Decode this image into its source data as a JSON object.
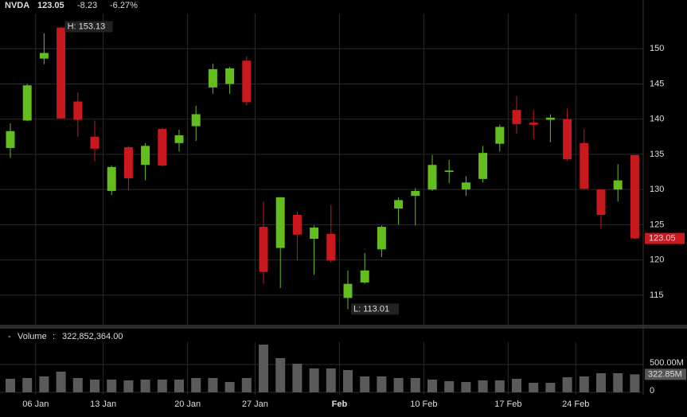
{
  "chart_data": {
    "type": "candlestick",
    "symbol": "NVDA",
    "last": "123.05",
    "change": "-8.23",
    "change_pct": "-6.27%",
    "high_label": "H: 153.13",
    "low_label": "L: 113.01",
    "last_label": "123.05",
    "volume_title": "Volume",
    "volume_text": "322,852,364.00",
    "categories": [
      null,
      null,
      "06 Jan",
      null,
      null,
      null,
      "13 Jan",
      null,
      null,
      null,
      null,
      "20 Jan",
      null,
      null,
      null,
      "27 Jan",
      null,
      null,
      null,
      null,
      "Feb",
      null,
      null,
      null,
      null,
      "10 Feb",
      null,
      null,
      null,
      null,
      "17 Feb",
      null,
      null,
      null,
      "24 Feb",
      null,
      null,
      null
    ],
    "open": [
      135.9,
      139.8,
      148.6,
      153.0,
      142.5,
      137.5,
      129.8,
      136.0,
      133.5,
      138.6,
      136.6,
      139.0,
      144.5,
      145.0,
      148.3,
      124.7,
      121.7,
      126.4,
      123.0,
      123.7,
      114.6,
      116.8,
      121.5,
      127.3,
      129.1,
      130.0,
      132.5,
      130.0,
      131.5,
      136.5,
      141.3,
      139.5,
      139.9,
      140.0,
      136.6,
      130.0,
      130.0,
      134.9
    ],
    "high": [
      139.4,
      145.0,
      152.2,
      153.13,
      143.8,
      139.8,
      133.4,
      136.2,
      136.6,
      138.8,
      138.5,
      141.9,
      147.9,
      147.4,
      148.9,
      128.3,
      128.9,
      126.9,
      124.9,
      127.8,
      118.5,
      121.0,
      124.9,
      128.9,
      130.2,
      134.9,
      134.2,
      131.9,
      136.2,
      139.2,
      143.3,
      141.3,
      140.7,
      141.5,
      138.6,
      130.0,
      133.6,
      134.9
    ],
    "low": [
      134.5,
      139.7,
      147.8,
      140.0,
      137.5,
      134.0,
      129.2,
      129.9,
      131.3,
      133.3,
      135.4,
      136.9,
      143.6,
      143.6,
      141.9,
      116.6,
      116.0,
      119.9,
      117.9,
      119.6,
      113.01,
      116.6,
      120.4,
      125.0,
      124.9,
      129.8,
      130.9,
      129.1,
      131.0,
      135.4,
      137.9,
      137.2,
      136.7,
      134.1,
      130.0,
      124.4,
      128.3,
      122.9
    ],
    "close": [
      138.3,
      144.8,
      149.4,
      140.1,
      139.9,
      135.8,
      133.2,
      131.6,
      136.2,
      133.4,
      137.7,
      140.7,
      147.1,
      147.2,
      142.4,
      118.3,
      128.9,
      123.6,
      124.6,
      119.9,
      116.6,
      118.5,
      124.7,
      128.5,
      129.8,
      133.5,
      132.7,
      131.0,
      135.2,
      138.9,
      139.3,
      139.2,
      140.2,
      134.3,
      130.1,
      126.4,
      131.3,
      123.05
    ],
    "volume": [
      243000000,
      257000000,
      286000000,
      371000000,
      257000000,
      229000000,
      229000000,
      214000000,
      229000000,
      229000000,
      229000000,
      257000000,
      257000000,
      186000000,
      257000000,
      857000000,
      614000000,
      514000000,
      429000000,
      429000000,
      400000000,
      286000000,
      286000000,
      257000000,
      257000000,
      229000000,
      200000000,
      186000000,
      214000000,
      214000000,
      243000000,
      171000000,
      171000000,
      271000000,
      286000000,
      343000000,
      343000000,
      322852364
    ],
    "volume_value_labels": [
      null,
      null,
      null,
      null,
      null,
      null,
      null,
      null,
      null,
      null,
      null,
      null,
      null,
      null,
      null,
      null,
      null,
      null,
      null,
      null,
      null,
      null,
      null,
      null,
      null,
      null,
      null,
      null,
      null,
      null,
      null,
      null,
      null,
      null,
      null,
      null,
      null,
      "322.85M"
    ],
    "up_color": "#64bd1e",
    "down_color": "#c9181e",
    "volume_color": "#5a5a5a",
    "ylim": [
      110.8,
      155
    ],
    "yticks": [
      115,
      120,
      125,
      130,
      135,
      140,
      145,
      150
    ],
    "vlim": [
      0,
      871000000
    ],
    "vticks": [
      {
        "value": 0,
        "label": "0"
      },
      {
        "value": 500000000,
        "label": "500.00M"
      }
    ],
    "grid": true
  }
}
